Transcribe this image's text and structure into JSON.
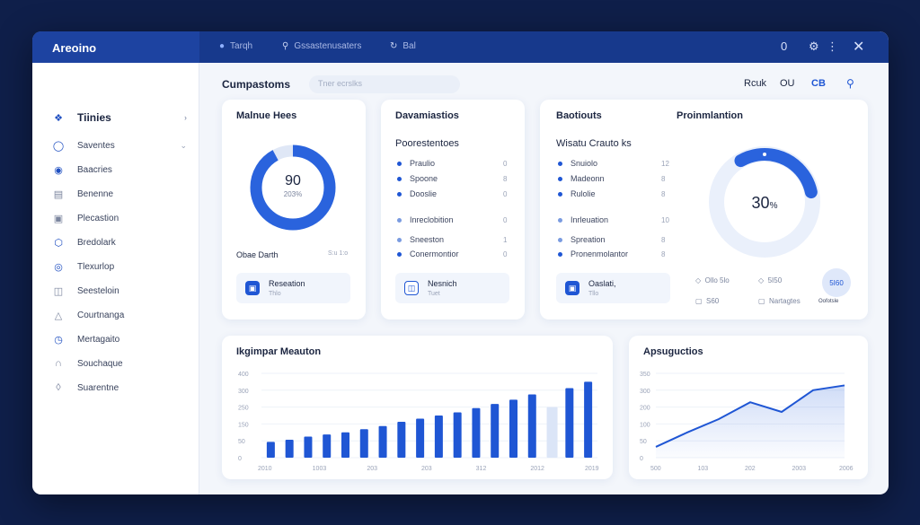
{
  "app": {
    "title": "Areoino"
  },
  "titlebar": {
    "items": [
      "Tarqh",
      "Gssastenusaters",
      "Bal"
    ],
    "right_count": "0"
  },
  "sidebar": {
    "items": [
      {
        "label": "Tiinies",
        "icon": "tag-icon"
      },
      {
        "label": "Saventes",
        "icon": "circle-icon"
      },
      {
        "label": "Baacries",
        "icon": "cloud-icon"
      },
      {
        "label": "Benenne",
        "icon": "doc-icon"
      },
      {
        "label": "Plecastion",
        "icon": "folder-icon"
      },
      {
        "label": "Bredolark",
        "icon": "hexagon-icon"
      },
      {
        "label": "Tlexurlop",
        "icon": "target-icon"
      },
      {
        "label": "Seesteloin",
        "icon": "shield-icon"
      },
      {
        "label": "Courtnanga",
        "icon": "drop-icon"
      },
      {
        "label": "Mertagaito",
        "icon": "clock-icon"
      },
      {
        "label": "Souchaque",
        "icon": "bracket-icon"
      },
      {
        "label": "Suarentne",
        "icon": "bell-icon"
      }
    ]
  },
  "topbar": {
    "title": "Cumpastoms",
    "search_placeholder": "Tner ecrslks",
    "right_items": [
      "Rcuk",
      "OU",
      "CB"
    ]
  },
  "card1": {
    "title": "Malnue Hees",
    "gauge_value": "90",
    "gauge_sub": "203%",
    "gauge_fraction": 0.92,
    "footer_label": "Obae Darth",
    "footer_value": "S:u 1:o",
    "tile_title": "Reseation",
    "tile_sub": "Thlo"
  },
  "card2": {
    "title": "Davamiastios",
    "subtitle": "Poorestentoes",
    "rows": [
      {
        "label": "Praulio",
        "value": "0"
      },
      {
        "label": "Spoone",
        "value": "8"
      },
      {
        "label": "Dooslie",
        "value": "0"
      },
      {
        "label": "Inreclobition",
        "value": "0"
      },
      {
        "label": "Sneeston",
        "value": "1"
      },
      {
        "label": "Conermontior",
        "value": "0"
      }
    ],
    "tile_title": "Nesnich",
    "tile_sub": "Tuet"
  },
  "card3": {
    "title": "Baotiouts",
    "title2": "Proinmlantion",
    "subtitle": "Wisatu Crauto ks",
    "rows": [
      {
        "label": "Snuiolo",
        "value": "12"
      },
      {
        "label": "Madeonn",
        "value": "8"
      },
      {
        "label": "Rulolie",
        "value": "8"
      },
      {
        "label": "Inrleuation",
        "value": "10"
      },
      {
        "label": "Spreation",
        "value": "8"
      },
      {
        "label": "Pronenmolantor",
        "value": "8"
      }
    ],
    "tile_title": "Oaslati,",
    "tile_sub": "Tllo",
    "ring_value": "30",
    "ring_unit": "%",
    "ring_fraction": 0.3,
    "legend": [
      {
        "label": "Ollo 5lo",
        "marker": "◇"
      },
      {
        "label": "5I50",
        "marker": "◇"
      },
      {
        "label": "S60",
        "marker": "▢"
      },
      {
        "label": "Nartagtes",
        "marker": "▢"
      }
    ],
    "badge_value": "5I60",
    "badge_label": "Oofotsle"
  },
  "bar_chart": {
    "title": "Ikgimpar Meauton",
    "chart_data": {
      "type": "bar",
      "title": "Ikgimpar Meauton",
      "ylim": [
        0,
        400
      ],
      "y_ticks": [
        "0",
        "50",
        "150",
        "250",
        "300",
        "400"
      ],
      "x_ticks": [
        "2010",
        "1003",
        "203",
        "203",
        "312",
        "2012",
        "2019"
      ],
      "values": [
        75,
        85,
        100,
        110,
        120,
        135,
        150,
        170,
        185,
        200,
        215,
        235,
        255,
        275,
        300,
        240,
        330,
        360
      ],
      "highlight_index": 15,
      "color": "#1f56d4",
      "highlight_color": "#dbe5f7"
    }
  },
  "line_chart": {
    "title": "Apsuguctios",
    "chart_data": {
      "type": "area",
      "title": "Apsuguctios",
      "ylim": [
        0,
        350
      ],
      "y_ticks": [
        "0",
        "50",
        "100",
        "200",
        "300",
        "350"
      ],
      "x_ticks": [
        "500",
        "103",
        "202",
        "2003",
        "2006"
      ],
      "values": [
        45,
        105,
        160,
        230,
        190,
        280,
        300
      ],
      "color": "#1f56d4"
    }
  }
}
